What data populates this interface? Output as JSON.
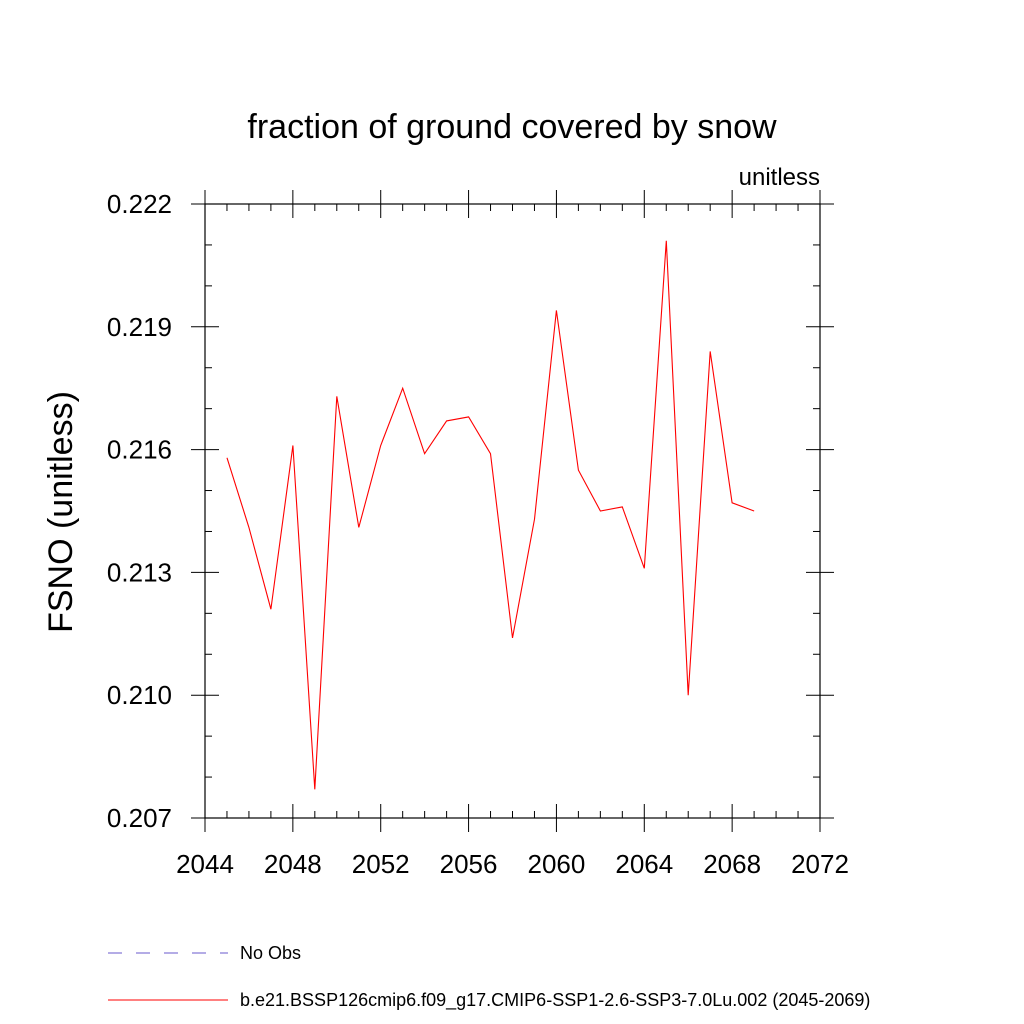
{
  "chart_data": {
    "type": "line",
    "title": "fraction of ground covered by snow",
    "units": "unitless",
    "ylabel": "FSNO  (unitless)",
    "xlabel": "",
    "xlim": [
      2044,
      2072
    ],
    "ylim": [
      0.207,
      0.222
    ],
    "x_ticks": [
      2044,
      2048,
      2052,
      2056,
      2060,
      2064,
      2068,
      2072
    ],
    "y_ticks": [
      "0.207",
      "0.210",
      "0.213",
      "0.216",
      "0.219",
      "0.222"
    ],
    "y_tick_values": [
      0.207,
      0.21,
      0.213,
      0.216,
      0.219,
      0.222
    ],
    "x_minor_step": 1,
    "y_minor_step": 0.001,
    "series": [
      {
        "name": "b.e21.BSSP126cmip6.f09_g17.CMIP6-SSP1-2.6-SSP3-7.0Lu.002 (2045-2069)",
        "color": "#ff0000",
        "dash": "solid",
        "x": [
          2045,
          2046,
          2047,
          2048,
          2049,
          2050,
          2051,
          2052,
          2053,
          2054,
          2055,
          2056,
          2057,
          2058,
          2059,
          2060,
          2061,
          2062,
          2063,
          2064,
          2065,
          2066,
          2067,
          2068,
          2069
        ],
        "y": [
          0.2158,
          0.2141,
          0.2121,
          0.2161,
          0.2077,
          0.2173,
          0.2141,
          0.2161,
          0.2175,
          0.2159,
          0.2167,
          0.2168,
          0.2159,
          0.2114,
          0.2143,
          0.2194,
          0.2155,
          0.2145,
          0.2146,
          0.2131,
          0.2211,
          0.21,
          0.2184,
          0.2147,
          0.2145
        ]
      }
    ],
    "legend": [
      {
        "label": "No Obs",
        "color": "#6a5acd",
        "dash": "dashed"
      },
      {
        "label": "b.e21.BSSP126cmip6.f09_g17.CMIP6-SSP1-2.6-SSP3-7.0Lu.002 (2045-2069)",
        "color": "#ff0000",
        "dash": "solid"
      }
    ]
  }
}
